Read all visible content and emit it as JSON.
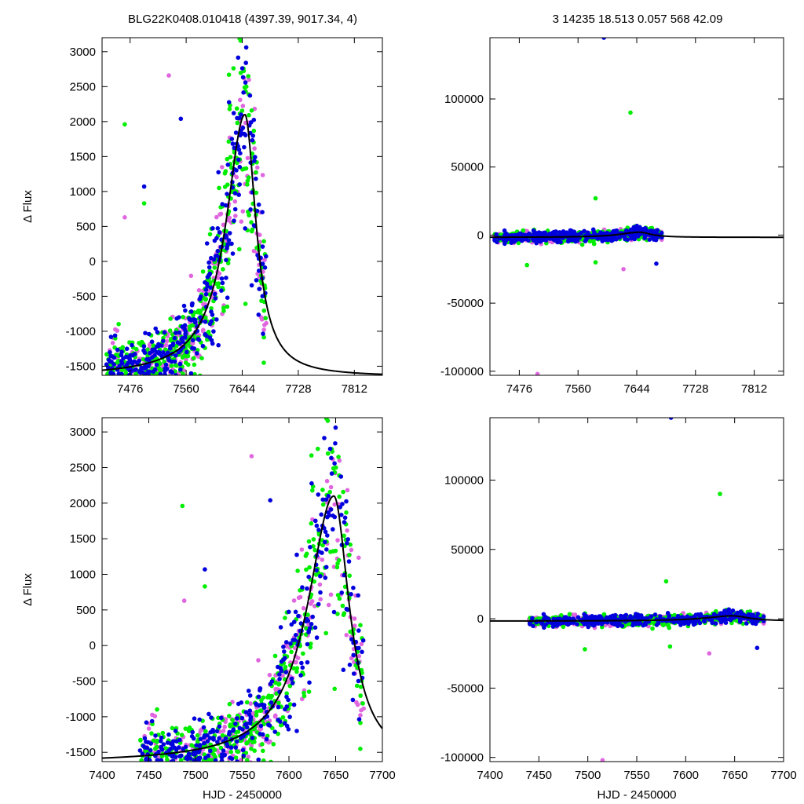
{
  "header": {
    "left_title": "BLG22K0408.010418 (4397.39, 9017.34,     4)",
    "right_title": "3   14235    18.513    0.057    568    42.09"
  },
  "colors": {
    "magenta": "#e066e0",
    "green": "#00ee00",
    "blue": "#0000dd",
    "model": "#000000"
  },
  "chart_data": [
    {
      "id": "top-left",
      "type": "scatter",
      "title": "",
      "xlabel": "",
      "ylabel": "Δ Flux",
      "xlim": [
        7434,
        7854
      ],
      "ylim": [
        -1630,
        3200
      ],
      "xticks": [
        7476,
        7560,
        7644,
        7728,
        7812
      ],
      "yticks": [
        -1500,
        -1000,
        -500,
        0,
        500,
        1000,
        1500,
        2000,
        2500,
        3000
      ],
      "model": {
        "baseline": -1650,
        "amplitude": 3750,
        "peak_x": 7648,
        "rise": 34,
        "decay": 20
      },
      "series": [
        {
          "color": "magenta",
          "seed": 11,
          "count": 300
        },
        {
          "color": "green",
          "seed": 23,
          "count": 420
        },
        {
          "color": "blue",
          "seed": 37,
          "count": 360
        }
      ],
      "outliers": [
        {
          "x": 7468,
          "y": 1960,
          "color": "green"
        },
        {
          "x": 7497,
          "y": 1070,
          "color": "blue"
        },
        {
          "x": 7534,
          "y": 2660,
          "color": "magenta"
        },
        {
          "x": 7552,
          "y": 2040,
          "color": "blue"
        },
        {
          "x": 7468,
          "y": 630,
          "color": "magenta"
        },
        {
          "x": 7497,
          "y": 830,
          "color": "green"
        }
      ]
    },
    {
      "id": "top-right",
      "type": "scatter",
      "title": "",
      "xlabel": "",
      "ylabel": "",
      "xlim": [
        7434,
        7854
      ],
      "ylim": [
        -103000,
        145000
      ],
      "xticks": [
        7476,
        7560,
        7644,
        7728,
        7812
      ],
      "yticks": [
        -100000,
        -50000,
        0,
        50000,
        100000
      ],
      "model": {
        "baseline": -1650,
        "amplitude": 3750,
        "peak_x": 7648,
        "rise": 34,
        "decay": 20
      },
      "series": [
        {
          "color": "magenta",
          "seed": 11,
          "count": 300
        },
        {
          "color": "green",
          "seed": 23,
          "count": 420
        },
        {
          "color": "blue",
          "seed": 37,
          "count": 360
        }
      ],
      "outliers": [
        {
          "x": 7597,
          "y": 145000,
          "color": "blue"
        },
        {
          "x": 7635,
          "y": 90000,
          "color": "green"
        },
        {
          "x": 7585,
          "y": 27000,
          "color": "green"
        },
        {
          "x": 7502,
          "y": -102000,
          "color": "magenta"
        },
        {
          "x": 7625,
          "y": -25000,
          "color": "magenta"
        },
        {
          "x": 7672,
          "y": -21000,
          "color": "blue"
        },
        {
          "x": 7487,
          "y": -22000,
          "color": "green"
        },
        {
          "x": 7585,
          "y": -20000,
          "color": "green"
        }
      ]
    },
    {
      "id": "bottom-left",
      "type": "scatter",
      "title": "",
      "xlabel": "HJD - 2450000",
      "ylabel": "Δ Flux",
      "xlim": [
        7400,
        7700
      ],
      "ylim": [
        -1630,
        3200
      ],
      "xticks": [
        7400,
        7450,
        7500,
        7550,
        7600,
        7650,
        7700
      ],
      "yticks": [
        -1500,
        -1000,
        -500,
        0,
        500,
        1000,
        1500,
        2000,
        2500,
        3000
      ],
      "model": {
        "baseline": -1650,
        "amplitude": 3750,
        "peak_x": 7648,
        "rise": 34,
        "decay": 20
      },
      "series": [
        {
          "color": "magenta",
          "seed": 11,
          "count": 300
        },
        {
          "color": "green",
          "seed": 23,
          "count": 420
        },
        {
          "color": "blue",
          "seed": 37,
          "count": 360
        }
      ],
      "outliers": [
        {
          "x": 7486,
          "y": 1960,
          "color": "green"
        },
        {
          "x": 7510,
          "y": 1070,
          "color": "blue"
        },
        {
          "x": 7560,
          "y": 2660,
          "color": "magenta"
        },
        {
          "x": 7580,
          "y": 2040,
          "color": "blue"
        },
        {
          "x": 7488,
          "y": 630,
          "color": "magenta"
        },
        {
          "x": 7510,
          "y": 830,
          "color": "green"
        }
      ]
    },
    {
      "id": "bottom-right",
      "type": "scatter",
      "title": "",
      "xlabel": "HJD - 2450000",
      "ylabel": "",
      "xlim": [
        7400,
        7700
      ],
      "ylim": [
        -103000,
        145000
      ],
      "xticks": [
        7400,
        7450,
        7500,
        7550,
        7600,
        7650,
        7700
      ],
      "yticks": [
        -100000,
        -50000,
        0,
        50000,
        100000
      ],
      "model": {
        "baseline": -1650,
        "amplitude": 3750,
        "peak_x": 7648,
        "rise": 34,
        "decay": 20
      },
      "series": [
        {
          "color": "magenta",
          "seed": 11,
          "count": 300
        },
        {
          "color": "green",
          "seed": 23,
          "count": 420
        },
        {
          "color": "blue",
          "seed": 37,
          "count": 360
        }
      ],
      "outliers": [
        {
          "x": 7585,
          "y": 145000,
          "color": "blue"
        },
        {
          "x": 7635,
          "y": 90000,
          "color": "green"
        },
        {
          "x": 7580,
          "y": 27000,
          "color": "green"
        },
        {
          "x": 7515,
          "y": -102000,
          "color": "magenta"
        },
        {
          "x": 7624,
          "y": -25000,
          "color": "magenta"
        },
        {
          "x": 7673,
          "y": -21000,
          "color": "blue"
        },
        {
          "x": 7497,
          "y": -22000,
          "color": "green"
        },
        {
          "x": 7584,
          "y": -20000,
          "color": "green"
        }
      ]
    }
  ]
}
